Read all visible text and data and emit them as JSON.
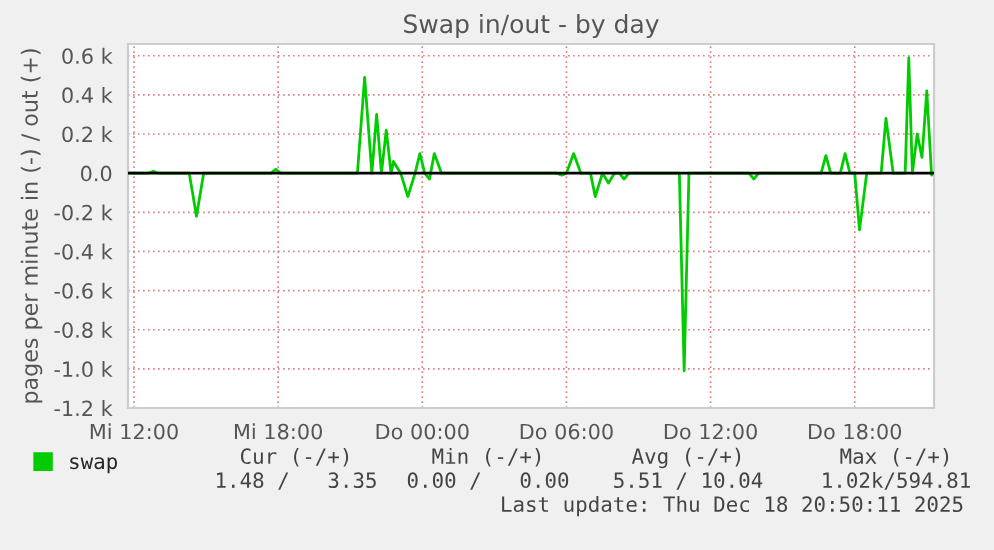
{
  "chart_data": {
    "type": "line",
    "title": "Swap in/out - by day",
    "ylabel": "pages per minute in (-) / out (+)",
    "x": [
      "2025-12-17T11:48",
      "2025-12-17T12:36",
      "2025-12-17T12:48",
      "2025-12-17T13:00",
      "2025-12-17T14:18",
      "2025-12-17T14:36",
      "2025-12-17T14:54",
      "2025-12-17T17:42",
      "2025-12-17T17:54",
      "2025-12-17T18:06",
      "2025-12-17T21:18",
      "2025-12-17T21:36",
      "2025-12-17T21:54",
      "2025-12-17T22:06",
      "2025-12-17T22:18",
      "2025-12-17T22:30",
      "2025-12-17T22:42",
      "2025-12-17T22:48",
      "2025-12-17T23:06",
      "2025-12-17T23:24",
      "2025-12-17T23:42",
      "2025-12-17T23:54",
      "2025-12-18T00:06",
      "2025-12-18T00:18",
      "2025-12-18T00:30",
      "2025-12-18T00:48",
      "2025-12-18T05:36",
      "2025-12-18T05:48",
      "2025-12-18T06:00",
      "2025-12-18T06:18",
      "2025-12-18T06:36",
      "2025-12-18T07:00",
      "2025-12-18T07:12",
      "2025-12-18T07:30",
      "2025-12-18T07:45",
      "2025-12-18T08:00",
      "2025-12-18T08:12",
      "2025-12-18T08:24",
      "2025-12-18T08:36",
      "2025-12-18T10:42",
      "2025-12-18T10:54",
      "2025-12-18T11:06",
      "2025-12-18T13:36",
      "2025-12-18T13:48",
      "2025-12-18T14:00",
      "2025-12-18T16:36",
      "2025-12-18T16:48",
      "2025-12-18T17:00",
      "2025-12-18T17:24",
      "2025-12-18T17:36",
      "2025-12-18T17:48",
      "2025-12-18T18:00",
      "2025-12-18T18:12",
      "2025-12-18T18:30",
      "2025-12-18T19:06",
      "2025-12-18T19:18",
      "2025-12-18T19:36",
      "2025-12-18T20:06",
      "2025-12-18T20:15",
      "2025-12-18T20:24",
      "2025-12-18T20:36",
      "2025-12-18T20:48",
      "2025-12-18T21:00",
      "2025-12-18T21:12",
      "2025-12-18T21:18"
    ],
    "series": [
      {
        "name": "swap",
        "color": "#00cc00",
        "values": [
          0,
          0,
          10,
          0,
          0,
          -220,
          0,
          0,
          20,
          0,
          0,
          490,
          0,
          300,
          0,
          220,
          0,
          60,
          0,
          -120,
          0,
          100,
          0,
          -30,
          100,
          0,
          0,
          -10,
          0,
          100,
          0,
          0,
          -120,
          0,
          -50,
          0,
          0,
          -30,
          0,
          0,
          -1010,
          0,
          0,
          -30,
          0,
          0,
          90,
          0,
          0,
          100,
          0,
          0,
          -290,
          0,
          0,
          280,
          0,
          0,
          590,
          0,
          200,
          80,
          420,
          -10,
          0
        ]
      }
    ],
    "xlim": [
      "2025-12-17T11:45",
      "2025-12-18T21:18"
    ],
    "ylim": [
      -1200,
      660
    ],
    "xticks": [
      {
        "value": "2025-12-17T12:00",
        "label": "Mi 12:00"
      },
      {
        "value": "2025-12-17T18:00",
        "label": "Mi 18:00"
      },
      {
        "value": "2025-12-18T00:00",
        "label": "Do 00:00"
      },
      {
        "value": "2025-12-18T06:00",
        "label": "Do 06:00"
      },
      {
        "value": "2025-12-18T12:00",
        "label": "Do 12:00"
      },
      {
        "value": "2025-12-18T18:00",
        "label": "Do 18:00"
      }
    ],
    "yticks": [
      {
        "value": 600,
        "label": "0.6 k"
      },
      {
        "value": 400,
        "label": "0.4 k"
      },
      {
        "value": 200,
        "label": "0.2 k"
      },
      {
        "value": 0,
        "label": "0.0"
      },
      {
        "value": -200,
        "label": "-0.2 k"
      },
      {
        "value": -400,
        "label": "-0.4 k"
      },
      {
        "value": -600,
        "label": "-0.6 k"
      },
      {
        "value": -800,
        "label": "-0.8 k"
      },
      {
        "value": -1000,
        "label": "-1.0 k"
      },
      {
        "value": -1200,
        "label": "-1.2 k"
      }
    ],
    "ref_lines": [
      {
        "axis": "y",
        "value": 0,
        "color": "#000000",
        "line_style": "solid"
      }
    ],
    "grid": true,
    "legend": "bottom left",
    "marker": "none",
    "line_style": "solid",
    "annotations": [
      "Cur (-/+)",
      "Min (-/+)",
      "Avg (-/+)",
      "Max (-/+)",
      "1.48 /   3.35",
      "0.00 /   0.00",
      "5.51 / 10.04",
      "1.02k/594.81",
      "Last update: Thu Dec 18 20:50:11 2025"
    ]
  }
}
